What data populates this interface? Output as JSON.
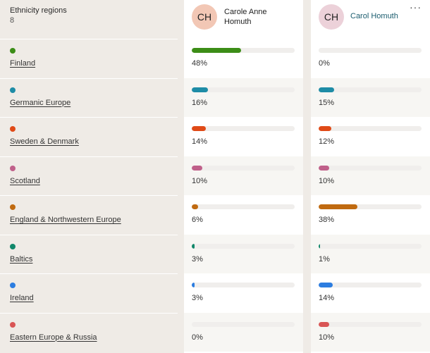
{
  "header": {
    "title": "Ethnicity regions",
    "count": "8",
    "people": [
      {
        "initials": "CH",
        "name": "Carole Anne Homuth"
      },
      {
        "initials": "CH",
        "name": "Carol Homuth"
      }
    ],
    "more_icon": "more-horizontal-icon",
    "more_glyph": "···"
  },
  "regions": [
    {
      "name": "Finland",
      "color": "#3c8d17",
      "a": {
        "label": "48%",
        "value": 48
      },
      "b": {
        "label": "0%",
        "value": 0
      }
    },
    {
      "name": "Germanic Europe",
      "color": "#1e8ca6",
      "a": {
        "label": "16%",
        "value": 16
      },
      "b": {
        "label": "15%",
        "value": 15
      }
    },
    {
      "name": "Sweden & Denmark",
      "color": "#e04a17",
      "a": {
        "label": "14%",
        "value": 14
      },
      "b": {
        "label": "12%",
        "value": 12
      }
    },
    {
      "name": "Scotland",
      "color": "#c0608a",
      "a": {
        "label": "10%",
        "value": 10
      },
      "b": {
        "label": "10%",
        "value": 10
      }
    },
    {
      "name": "England & Northwestern Europe",
      "color": "#c06a10",
      "a": {
        "label": "6%",
        "value": 6
      },
      "b": {
        "label": "38%",
        "value": 38
      }
    },
    {
      "name": "Baltics",
      "color": "#11876a",
      "a": {
        "label": "3%",
        "value": 3
      },
      "b": {
        "label": "1%",
        "value": 1
      }
    },
    {
      "name": "Ireland",
      "color": "#2c7de0",
      "a": {
        "label": "3%",
        "value": 3
      },
      "b": {
        "label": "14%",
        "value": 14
      }
    },
    {
      "name": "Eastern Europe & Russia",
      "color": "#d95555",
      "a": {
        "label": "0%",
        "value": 0
      },
      "b": {
        "label": "10%",
        "value": 10
      }
    }
  ]
}
